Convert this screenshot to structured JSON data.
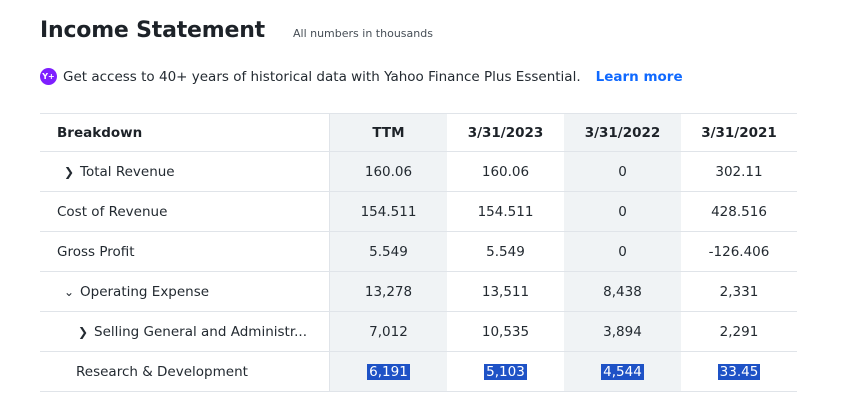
{
  "header": {
    "title": "Income Statement",
    "subtitle": "All numbers in thousands"
  },
  "promo": {
    "icon": "yahoo-plus-icon",
    "icon_text": "Y+",
    "text": "Get access to 40+ years of historical data with Yahoo Finance Plus Essential.",
    "link": "Learn more"
  },
  "table": {
    "columns": [
      "Breakdown",
      "TTM",
      "3/31/2023",
      "3/31/2022",
      "3/31/2021"
    ],
    "rows": [
      {
        "label": "Total Revenue",
        "chevron": ">",
        "values": [
          "160.06",
          "160.06",
          "0",
          "302.11"
        ]
      },
      {
        "label": "Cost of Revenue",
        "chevron": "",
        "values": [
          "154.511",
          "154.511",
          "0",
          "428.516"
        ]
      },
      {
        "label": "Gross Profit",
        "chevron": "",
        "values": [
          "5.549",
          "5.549",
          "0",
          "-126.406"
        ]
      },
      {
        "label": "Operating Expense",
        "chevron": "v",
        "values": [
          "13,278",
          "13,511",
          "8,438",
          "2,331"
        ]
      },
      {
        "label": "Selling General and Administr...",
        "chevron": ">",
        "values": [
          "7,012",
          "10,535",
          "3,894",
          "2,291"
        ]
      },
      {
        "label": "Research & Development",
        "chevron": "",
        "values": [
          "6,191",
          "5,103",
          "4,544",
          "33.45"
        ]
      }
    ]
  }
}
